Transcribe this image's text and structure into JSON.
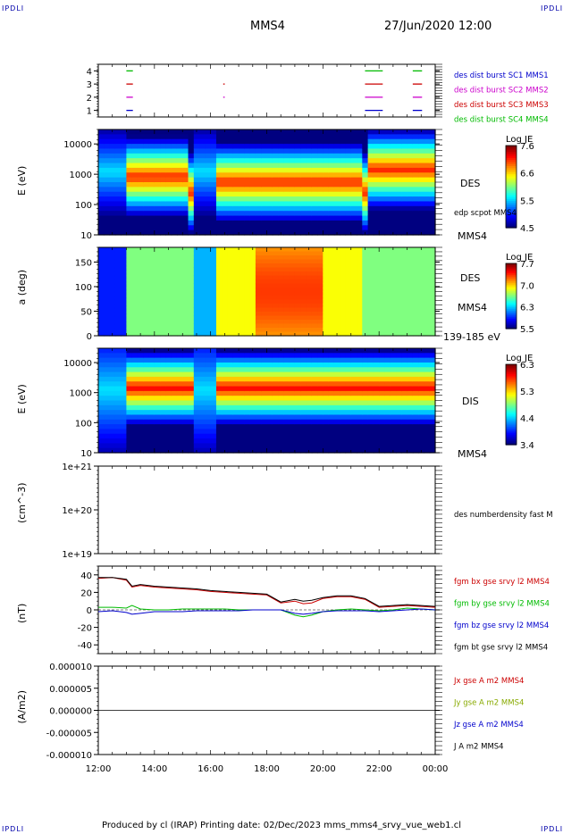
{
  "corner_labels": {
    "tl": "IPDLI",
    "tr": "IPDLI",
    "bl": "IPDLI",
    "br": "IPDLI"
  },
  "header": {
    "spacecraft": "MMS4",
    "datetime": "27/Jun/2020 12:00"
  },
  "footer": {
    "text": "Produced by cl (IRAP)   Printing date: 02/Dec/2023   mms_mms4_srvy_vue_web1.cl"
  },
  "colors": {
    "sc1": "#0000cc",
    "sc2": "#cc00cc",
    "sc3": "#cc0000",
    "sc4": "#00bb00",
    "bt": "#000000"
  },
  "time_axis": {
    "ticks": [
      "12:00",
      "14:00",
      "16:00",
      "18:00",
      "20:00",
      "22:00",
      "00:00"
    ],
    "start_hour": 12,
    "end_hour": 24
  },
  "chart_data": [
    {
      "type": "line",
      "panel": "availability",
      "ylim": [
        0.5,
        4.5
      ],
      "yticks": [
        "1",
        "2",
        "3",
        "4"
      ],
      "series": [
        {
          "name": "des dist burst SC1 MMS1",
          "level": 1,
          "intervals": [
            [
              13.0,
              13.2
            ],
            [
              21.5,
              22.1
            ],
            [
              23.2,
              23.5
            ]
          ]
        },
        {
          "name": "des dist burst SC2 MMS2",
          "level": 2,
          "intervals": [
            [
              13.0,
              13.2
            ],
            [
              16.45,
              16.47
            ],
            [
              21.5,
              22.1
            ],
            [
              23.2,
              23.5
            ]
          ]
        },
        {
          "name": "des dist burst SC3 MMS3",
          "level": 3,
          "intervals": [
            [
              13.0,
              13.2
            ],
            [
              16.45,
              16.47
            ],
            [
              21.5,
              22.1
            ],
            [
              23.2,
              23.5
            ]
          ]
        },
        {
          "name": "des dist burst SC4 MMS4",
          "level": 4,
          "intervals": [
            [
              13.0,
              13.2
            ],
            [
              21.5,
              22.1
            ],
            [
              23.2,
              23.5
            ]
          ]
        }
      ]
    },
    {
      "type": "heatmap",
      "panel": "des-energy",
      "ylabel": "E (eV)",
      "yscale": "log",
      "ylim": [
        10,
        30000
      ],
      "yticks": [
        "10",
        "100",
        "1000",
        "10000"
      ],
      "colorbar": {
        "title": "Log JE",
        "ticks": [
          "7.6",
          "6.6",
          "5.5",
          "4.5"
        ],
        "range": [
          4.5,
          7.6
        ]
      },
      "labels": [
        "DES",
        "edp scpot MMS4",
        "MMS4"
      ]
    },
    {
      "type": "heatmap",
      "panel": "des-pitch",
      "ylabel": "a (deg)",
      "ylim": [
        0,
        180
      ],
      "yticks": [
        "0",
        "50",
        "100",
        "150"
      ],
      "colorbar": {
        "title": "Log JE",
        "ticks": [
          "7.7",
          "7.0",
          "6.3",
          "5.5"
        ],
        "range": [
          5.5,
          7.7
        ]
      },
      "labels": [
        "DES",
        "MMS4",
        "139-185 eV"
      ]
    },
    {
      "type": "heatmap",
      "panel": "dis-energy",
      "ylabel": "E (eV)",
      "yscale": "log",
      "ylim": [
        10,
        30000
      ],
      "yticks": [
        "10",
        "100",
        "1000",
        "10000"
      ],
      "colorbar": {
        "title": "Log JE",
        "ticks": [
          "6.3",
          "5.3",
          "4.4",
          "3.4"
        ],
        "range": [
          3.4,
          6.3
        ]
      },
      "labels": [
        "DIS",
        "MMS4"
      ]
    },
    {
      "type": "line",
      "panel": "density",
      "ylabel": "(cm^-3)",
      "yscale": "log",
      "ylim": [
        1e+19,
        1e+21
      ],
      "yticks": [
        "1e+19",
        "1e+20",
        "1e+21"
      ],
      "series": [
        {
          "name": "des numberdensity fast M",
          "values": []
        }
      ]
    },
    {
      "type": "line",
      "panel": "magnetic-field",
      "ylabel": "(nT)",
      "ylim": [
        -50,
        50
      ],
      "yticks": [
        "-40",
        "-20",
        "0",
        "20",
        "40"
      ],
      "x": [
        12.0,
        12.5,
        13.0,
        13.2,
        13.5,
        14.0,
        14.5,
        15.0,
        15.5,
        16.0,
        16.5,
        17.0,
        17.5,
        18.0,
        18.5,
        19.0,
        19.3,
        19.6,
        20.0,
        20.5,
        21.0,
        21.5,
        22.0,
        22.5,
        23.0,
        23.5,
        24.0
      ],
      "series": [
        {
          "name": "fgm bx gse srvy l2 MMS4",
          "values": [
            36,
            37,
            34,
            26,
            28,
            26,
            25,
            24,
            23,
            21,
            20,
            19,
            18,
            17,
            8,
            10,
            7,
            8,
            13,
            15,
            15,
            12,
            3,
            4,
            5,
            4,
            3
          ]
        },
        {
          "name": "fgm by gse srvy l2 MMS4",
          "values": [
            3,
            3,
            2,
            5,
            1,
            0,
            0,
            1,
            1,
            1,
            1,
            0,
            0,
            0,
            0,
            -6,
            -8,
            -6,
            -2,
            0,
            1,
            0,
            -1,
            0,
            2,
            1,
            0
          ]
        },
        {
          "name": "fgm bz gse srvy l2 MMS4",
          "values": [
            -2,
            -1,
            -3,
            -5,
            -4,
            -2,
            -2,
            -2,
            -1,
            -1,
            -1,
            -1,
            0,
            0,
            0,
            -4,
            -5,
            -4,
            -2,
            -1,
            -1,
            -1,
            -2,
            -1,
            0,
            1,
            0
          ]
        },
        {
          "name": "fgm bt gse srvy l2 MMS4",
          "values": [
            37,
            37,
            35,
            27,
            29,
            27,
            26,
            25,
            24,
            22,
            21,
            20,
            19,
            18,
            9,
            12,
            10,
            11,
            14,
            16,
            16,
            13,
            4,
            5,
            6,
            5,
            4
          ]
        }
      ]
    },
    {
      "type": "line",
      "panel": "current",
      "ylabel": "(A/m2)",
      "ylim": [
        -1e-05,
        1e-05
      ],
      "yticks": [
        "-0.000010",
        "-0.000005",
        "0.000000",
        "0.000005",
        "0.000010"
      ],
      "series": [
        {
          "name": "Jx gse A m2 MMS4",
          "values": [
            0
          ]
        },
        {
          "name": "Jy gse A m2 MMS4",
          "values": [
            0
          ]
        },
        {
          "name": "Jz gse A m2 MMS4",
          "values": [
            0
          ]
        },
        {
          "name": "J A m2 MMS4",
          "values": [
            0
          ]
        }
      ]
    }
  ]
}
